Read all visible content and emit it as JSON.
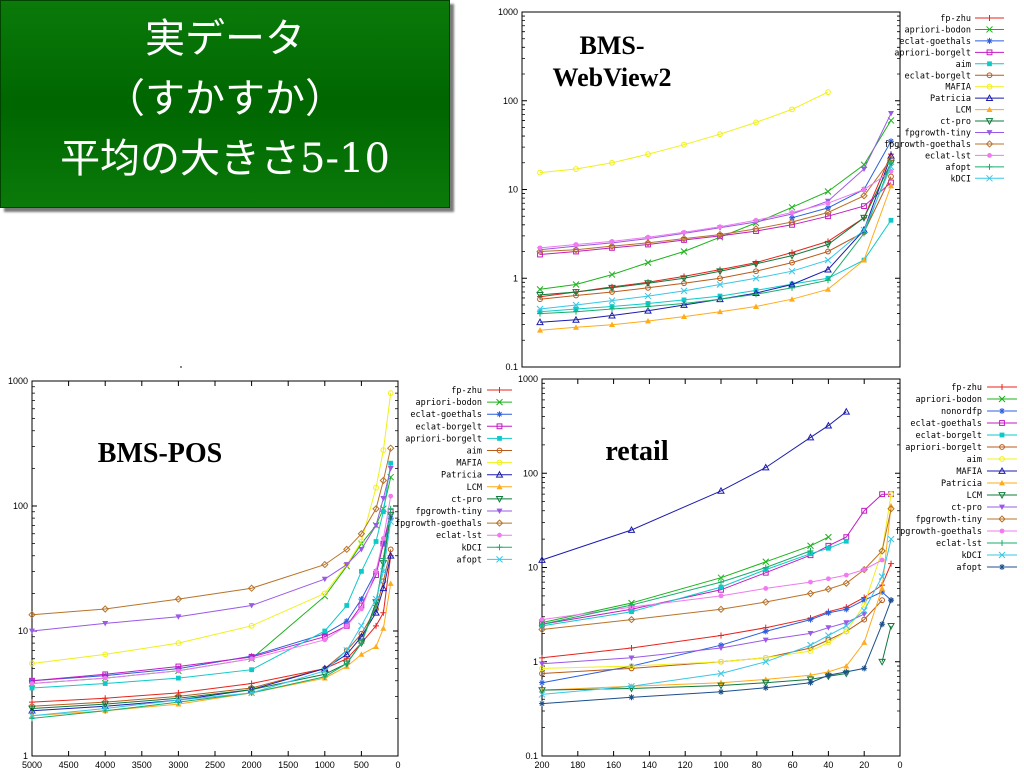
{
  "slide": {
    "title_lines": [
      "実データ",
      "（すかすか）",
      "平均の大きさ5-10"
    ]
  },
  "chart_data": [
    {
      "type": "line",
      "title": "BMS-WebView2",
      "y_scale": "log",
      "ylim": [
        0.1,
        1000
      ],
      "y_ticks": [
        "1000",
        "100",
        "10",
        "1",
        "0.1"
      ],
      "x_ticks": [],
      "x": [
        200,
        180,
        160,
        140,
        120,
        100,
        80,
        60,
        40,
        20,
        5
      ],
      "xlim": [
        210,
        0
      ],
      "legend_position": "right",
      "series": [
        {
          "name": "fp-zhu",
          "color": "#e8221c",
          "marker": "plus",
          "values": [
            0.62,
            0.7,
            0.8,
            0.9,
            1.05,
            1.25,
            1.5,
            1.95,
            2.6,
            4.8,
            25
          ]
        },
        {
          "name": "apriori-bodon",
          "color": "#19b319",
          "marker": "x",
          "values": [
            0.75,
            0.85,
            1.1,
            1.5,
            2.0,
            2.9,
            4.2,
            6.3,
            9.5,
            19,
            60
          ]
        },
        {
          "name": "eclat-goethals",
          "color": "#2b5fe0",
          "marker": "star",
          "values": [
            null,
            null,
            null,
            null,
            null,
            null,
            null,
            4.8,
            6.2,
            10,
            35
          ]
        },
        {
          "name": "apriori-borgelt",
          "color": "#c21bc2",
          "marker": "square",
          "values": [
            1.85,
            2.0,
            2.2,
            2.4,
            2.7,
            3.0,
            3.4,
            4.0,
            5.0,
            6.5,
            12
          ]
        },
        {
          "name": "aim",
          "color": "#0fc9c9",
          "marker": "filled-square",
          "values": [
            0.42,
            0.45,
            0.48,
            0.52,
            0.57,
            0.63,
            0.73,
            0.86,
            1.0,
            1.6,
            4.5
          ]
        },
        {
          "name": "eclat-borgelt",
          "color": "#b85a1a",
          "marker": "circle",
          "values": [
            0.58,
            0.64,
            0.7,
            0.78,
            0.88,
            1.0,
            1.2,
            1.5,
            2.0,
            3.3,
            14
          ]
        },
        {
          "name": "MAFIA",
          "color": "#f0f017",
          "marker": "circle",
          "values": [
            15.5,
            17,
            20,
            25,
            32,
            42,
            57,
            80,
            125,
            null,
            null
          ]
        },
        {
          "name": "Patricia",
          "color": "#1c1cad",
          "marker": "triangle",
          "values": [
            0.32,
            0.34,
            0.38,
            0.43,
            0.5,
            0.58,
            0.68,
            0.85,
            1.25,
            3.5,
            24
          ]
        },
        {
          "name": "LCM",
          "color": "#ffab1a",
          "marker": "filled-triangle",
          "values": [
            0.26,
            0.28,
            0.3,
            0.33,
            0.37,
            0.42,
            0.48,
            0.58,
            0.75,
            1.6,
            11
          ]
        },
        {
          "name": "ct-pro",
          "color": "#0f7a3a",
          "marker": "down-triangle",
          "values": [
            0.65,
            0.7,
            0.78,
            0.88,
            1.0,
            1.2,
            1.45,
            1.8,
            2.4,
            4.8,
            20
          ]
        },
        {
          "name": "fpgrowth-tiny",
          "color": "#9a59e6",
          "marker": "filled-down-triangle",
          "values": [
            2.1,
            2.3,
            2.5,
            2.8,
            3.2,
            3.7,
            4.3,
            5.3,
            7.4,
            17,
            72
          ]
        },
        {
          "name": "fpgrowth-goethals",
          "color": "#b8732a",
          "marker": "diamond",
          "values": [
            2.0,
            2.1,
            2.3,
            2.5,
            2.8,
            3.1,
            3.6,
            4.3,
            5.5,
            8.5,
            22
          ]
        },
        {
          "name": "eclat-lst",
          "color": "#f07af0",
          "marker": "filled-circle",
          "values": [
            2.2,
            2.4,
            2.6,
            2.9,
            3.3,
            3.8,
            4.5,
            5.5,
            7.0,
            10,
            16
          ]
        },
        {
          "name": "afopt",
          "color": "#18ad6b",
          "marker": "plus",
          "values": [
            0.4,
            0.42,
            0.45,
            0.48,
            0.52,
            0.58,
            0.66,
            0.78,
            0.95,
            3.2,
            20
          ]
        },
        {
          "name": "kDCI",
          "color": "#38c7e6",
          "marker": "x",
          "values": [
            0.45,
            0.5,
            0.56,
            0.63,
            0.72,
            0.85,
            1.0,
            1.2,
            1.6,
            3.5,
            18
          ]
        }
      ]
    },
    {
      "type": "line",
      "title": "BMS-POS",
      "y_scale": "log",
      "ylim": [
        1,
        1000
      ],
      "y_ticks": [
        "1000",
        "100",
        "10",
        "1"
      ],
      "x_ticks": [
        "5000",
        "4500",
        "4000",
        "3500",
        "3000",
        "2500",
        "2000",
        "1500",
        "1000",
        "500",
        "0"
      ],
      "x": [
        5000,
        4000,
        3000,
        2000,
        1000,
        700,
        500,
        300,
        200,
        100
      ],
      "xlim": [
        5000,
        0
      ],
      "legend_position": "right",
      "series": [
        {
          "name": "fp-zhu",
          "color": "#e8221c",
          "marker": "plus",
          "values": [
            2.7,
            2.9,
            3.2,
            3.8,
            5.0,
            6.0,
            8.0,
            11,
            14,
            40
          ]
        },
        {
          "name": "apriori-bodon",
          "color": "#19b319",
          "marker": "x",
          "values": [
            3.8,
            4.2,
            4.8,
            6.0,
            19,
            33,
            50,
            70,
            95,
            170
          ]
        },
        {
          "name": "eclat-goethals",
          "color": "#2b5fe0",
          "marker": "star",
          "values": [
            4.0,
            4.4,
            5.0,
            6.3,
            9.5,
            12,
            18,
            30,
            50,
            80
          ]
        },
        {
          "name": "eclat-borgelt",
          "color": "#c21bc2",
          "marker": "square",
          "values": [
            4.0,
            4.5,
            5.2,
            6.2,
            9.0,
            11,
            16,
            28,
            50,
            90
          ]
        },
        {
          "name": "apriori-borgelt",
          "color": "#0fc9c9",
          "marker": "filled-square",
          "values": [
            3.5,
            3.8,
            4.2,
            4.9,
            10,
            16,
            30,
            52,
            90,
            220
          ]
        },
        {
          "name": "aim",
          "color": "#b85a1a",
          "marker": "circle",
          "values": [
            2.5,
            2.7,
            3.0,
            3.5,
            5.0,
            7.0,
            9.5,
            15,
            25,
            45
          ]
        },
        {
          "name": "MAFIA",
          "color": "#f0f017",
          "marker": "circle",
          "values": [
            5.5,
            6.5,
            8.0,
            11,
            20,
            34,
            52,
            140,
            280,
            800
          ]
        },
        {
          "name": "Patricia",
          "color": "#1c1cad",
          "marker": "triangle",
          "values": [
            2.3,
            2.5,
            2.8,
            3.4,
            5.0,
            6.5,
            9.0,
            14,
            22,
            40
          ]
        },
        {
          "name": "LCM",
          "color": "#ffab1a",
          "marker": "filled-triangle",
          "values": [
            2.1,
            2.3,
            2.6,
            3.2,
            4.2,
            5.2,
            6.5,
            7.5,
            10.5,
            24
          ]
        },
        {
          "name": "ct-pro",
          "color": "#0f7a3a",
          "marker": "down-triangle",
          "values": [
            2.4,
            2.6,
            2.9,
            3.4,
            4.5,
            5.5,
            8.0,
            17,
            35,
            85
          ]
        },
        {
          "name": "fpgrowth-tiny",
          "color": "#9a59e6",
          "marker": "filled-down-triangle",
          "values": [
            10,
            11.5,
            13,
            16,
            26,
            34,
            45,
            70,
            115,
            200
          ]
        },
        {
          "name": "fpgrowth-goethals",
          "color": "#b8732a",
          "marker": "diamond",
          "values": [
            13.5,
            15,
            18,
            22,
            34,
            45,
            60,
            95,
            160,
            290
          ]
        },
        {
          "name": "eclat-lst",
          "color": "#f07af0",
          "marker": "filled-circle",
          "values": [
            3.8,
            4.2,
            4.8,
            6.0,
            8.5,
            11,
            15,
            30,
            55,
            120
          ]
        },
        {
          "name": "kDCI",
          "color": "#18ad6b",
          "marker": "plus",
          "values": [
            2.0,
            2.3,
            2.7,
            3.2,
            4.3,
            5.5,
            8.0,
            16,
            38,
            95
          ]
        },
        {
          "name": "afopt",
          "color": "#38c7e6",
          "marker": "x",
          "values": [
            2.1,
            2.4,
            2.8,
            3.2,
            4.8,
            7.0,
            11,
            18,
            30,
            75
          ]
        }
      ]
    },
    {
      "type": "line",
      "title": "retail",
      "y_scale": "log",
      "ylim": [
        0.1,
        1000
      ],
      "y_ticks": [
        "1000",
        "100",
        "10",
        "1",
        "0.1"
      ],
      "x_ticks": [
        "200",
        "180",
        "160",
        "140",
        "120",
        "100",
        "80",
        "60",
        "40",
        "20",
        "0"
      ],
      "x": [
        200,
        150,
        100,
        75,
        50,
        40,
        30,
        20,
        10,
        5
      ],
      "xlim": [
        200,
        0
      ],
      "legend_position": "right",
      "series": [
        {
          "name": "fp-zhu",
          "color": "#e8221c",
          "marker": "plus",
          "values": [
            1.1,
            1.4,
            1.9,
            2.3,
            2.9,
            3.4,
            3.8,
            4.8,
            6.5,
            11
          ]
        },
        {
          "name": "apriori-bodon",
          "color": "#19b319",
          "marker": "x",
          "values": [
            2.6,
            4.2,
            7.8,
            11.5,
            17,
            21,
            null,
            null,
            null,
            null
          ]
        },
        {
          "name": "nonordfp",
          "color": "#2b5fe0",
          "marker": "star",
          "values": [
            0.6,
            0.9,
            1.5,
            2.1,
            2.8,
            3.3,
            3.6,
            4.5,
            5.5,
            4.5
          ]
        },
        {
          "name": "eclat-goethals",
          "color": "#c21bc2",
          "marker": "square",
          "values": [
            2.5,
            3.6,
            5.8,
            8.8,
            13.5,
            17,
            21,
            40,
            60,
            60
          ]
        },
        {
          "name": "eclat-borgelt",
          "color": "#0fc9c9",
          "marker": "filled-square",
          "values": [
            2.4,
            3.4,
            6.2,
            9.5,
            14,
            16,
            19,
            null,
            null,
            null
          ]
        },
        {
          "name": "apriori-borgelt",
          "color": "#b85a1a",
          "marker": "circle",
          "values": [
            0.75,
            0.85,
            1.0,
            1.1,
            1.4,
            1.7,
            2.1,
            2.8,
            4.5,
            null
          ]
        },
        {
          "name": "aim",
          "color": "#f0f017",
          "marker": "circle",
          "values": [
            0.85,
            0.9,
            1.0,
            1.1,
            1.3,
            1.6,
            2.1,
            4.0,
            15,
            60
          ]
        },
        {
          "name": "MAFIA",
          "color": "#1c1cad",
          "marker": "triangle",
          "values": [
            12,
            25,
            65,
            115,
            240,
            320,
            450,
            null,
            null,
            null
          ]
        },
        {
          "name": "Patricia",
          "color": "#ffab1a",
          "marker": "filled-triangle",
          "values": [
            0.5,
            0.55,
            0.6,
            0.65,
            0.72,
            0.78,
            0.9,
            1.6,
            6.0,
            45
          ]
        },
        {
          "name": "LCM",
          "color": "#0f7a3a",
          "marker": "down-triangle",
          "values": [
            0.5,
            0.52,
            0.56,
            0.6,
            0.65,
            0.7,
            0.75,
            null,
            1.0,
            2.4
          ]
        },
        {
          "name": "ct-pro",
          "color": "#9a59e6",
          "marker": "filled-down-triangle",
          "values": [
            0.95,
            1.1,
            1.4,
            1.7,
            2.0,
            2.3,
            2.6,
            3.2,
            null,
            null
          ]
        },
        {
          "name": "fpgrowth-tiny",
          "color": "#b8732a",
          "marker": "diamond",
          "values": [
            2.2,
            2.8,
            3.6,
            4.3,
            5.3,
            5.9,
            6.8,
            9.5,
            15,
            42
          ]
        },
        {
          "name": "fpgrowth-goethals",
          "color": "#f07af0",
          "marker": "filled-circle",
          "values": [
            2.8,
            3.8,
            5.0,
            6.0,
            7.0,
            7.6,
            8.3,
            9.5,
            12,
            null
          ]
        },
        {
          "name": "eclat-lst",
          "color": "#18ad6b",
          "marker": "plus",
          "values": [
            2.5,
            4.0,
            7.0,
            10,
            15,
            null,
            null,
            null,
            null,
            null
          ]
        },
        {
          "name": "kDCI",
          "color": "#38c7e6",
          "marker": "x",
          "values": [
            0.45,
            0.55,
            0.75,
            1.0,
            1.5,
            1.9,
            2.4,
            3.5,
            8.0,
            20
          ]
        },
        {
          "name": "afopt",
          "color": "#1b4f8a",
          "marker": "star",
          "values": [
            0.36,
            0.42,
            0.48,
            0.53,
            0.6,
            0.72,
            0.78,
            0.85,
            2.5,
            4.5
          ]
        }
      ]
    }
  ]
}
